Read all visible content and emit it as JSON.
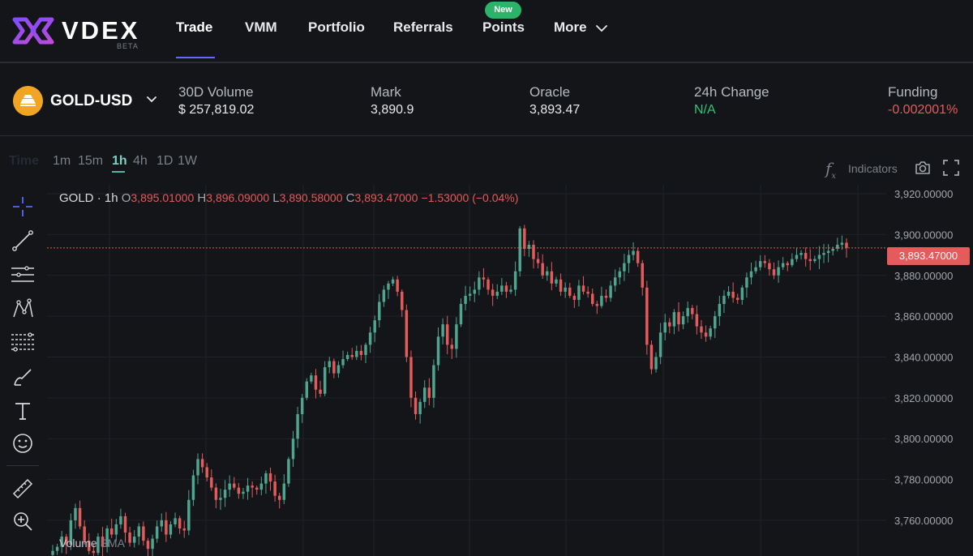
{
  "brand": {
    "name": "VDEX",
    "tag": "BETA"
  },
  "nav": {
    "items": [
      {
        "label": "Trade",
        "active": true
      },
      {
        "label": "VMM"
      },
      {
        "label": "Portfolio"
      },
      {
        "label": "Referrals"
      },
      {
        "label": "Points",
        "badge": "New"
      },
      {
        "label": "More"
      }
    ]
  },
  "market": {
    "pair": "GOLD-USD",
    "stats": [
      {
        "label": "30D Volume",
        "value": "$ 257,819.02",
        "color": "#e8e9ec"
      },
      {
        "label": "Mark",
        "value": "3,890.9",
        "color": "#e8e9ec"
      },
      {
        "label": "Oracle",
        "value": "3,893.47",
        "color": "#e8e9ec"
      },
      {
        "label": "24h Change",
        "value": "N/A",
        "color": "#33c27a"
      },
      {
        "label": "Funding",
        "value": "-0.002001%",
        "color": "#e35b5b"
      }
    ]
  },
  "toolbar": {
    "time_label": "Time",
    "timeframes": [
      "1m",
      "15m",
      "1h",
      "4h",
      "1D",
      "1W"
    ],
    "active_timeframe": "1h",
    "indicators_label": "Indicators"
  },
  "drawing_tools": [
    "crosshair-icon",
    "trend-line-icon",
    "horizontal-lines-icon",
    "pattern-icon",
    "fib-levels-icon",
    "brush-icon",
    "text-icon",
    "emoji-icon",
    "ruler-icon",
    "zoom-in-icon"
  ],
  "chart_data": {
    "type": "candlestick",
    "symbol": "GOLD",
    "interval": "1h",
    "ohlc_legend": {
      "O": "3,895.01000",
      "H": "3,896.09000",
      "L": "3,890.58000",
      "C": "3,893.47000",
      "change": "−1.53000 (−0.04%)"
    },
    "y_ticks": [
      "3,920.00000",
      "3,900.00000",
      "3,880.00000",
      "3,860.00000",
      "3,840.00000",
      "3,820.00000",
      "3,800.00000",
      "3,780.00000",
      "3,760.00000"
    ],
    "ylim": [
      3742.5,
      3922
    ],
    "last_price": "3,893.47000",
    "last_price_value": 3893.47,
    "volume_label": "Volume",
    "volume_sma_label": "SMA",
    "up_color": "#4fa58f",
    "down_color": "#e35b5b",
    "close_path": [
      3745,
      3747,
      3752,
      3748,
      3760,
      3766,
      3757,
      3750,
      3745,
      3744,
      3752,
      3747,
      3756,
      3753,
      3758,
      3762,
      3754,
      3749,
      3752,
      3757,
      3750,
      3746,
      3751,
      3757,
      3760,
      3753,
      3758,
      3761,
      3756,
      3755,
      3770,
      3782,
      3790,
      3786,
      3781,
      3776,
      3770,
      3771,
      3775,
      3778,
      3776,
      3773,
      3774,
      3777,
      3776,
      3775,
      3778,
      3783,
      3779,
      3772,
      3770,
      3778,
      3790,
      3800,
      3812,
      3820,
      3828,
      3831,
      3824,
      3822,
      3835,
      3838,
      3832,
      3836,
      3839,
      3841,
      3840,
      3843,
      3841,
      3846,
      3852,
      3858,
      3867,
      3873,
      3876,
      3878,
      3872,
      3863,
      3840,
      3820,
      3812,
      3818,
      3825,
      3820,
      3836,
      3850,
      3856,
      3846,
      3844,
      3856,
      3866,
      3870,
      3871,
      3873,
      3879,
      3878,
      3873,
      3870,
      3872,
      3875,
      3872,
      3873,
      3882,
      3903,
      3893,
      3895,
      3888,
      3886,
      3880,
      3882,
      3876,
      3878,
      3872,
      3874,
      3870,
      3868,
      3875,
      3872,
      3871,
      3866,
      3865,
      3870,
      3869,
      3875,
      3879,
      3882,
      3886,
      3890,
      3892,
      3886,
      3874,
      3846,
      3834,
      3840,
      3852,
      3857,
      3855,
      3862,
      3856,
      3860,
      3864,
      3861,
      3855,
      3852,
      3850,
      3854,
      3860,
      3866,
      3870,
      3872,
      3869,
      3868,
      3874,
      3879,
      3882,
      3884,
      3887,
      3886,
      3883,
      3880,
      3884,
      3886,
      3885,
      3888,
      3890,
      3891,
      3888,
      3887,
      3888,
      3890,
      3891,
      3892,
      3893,
      3895,
      3896,
      3893.47
    ]
  }
}
